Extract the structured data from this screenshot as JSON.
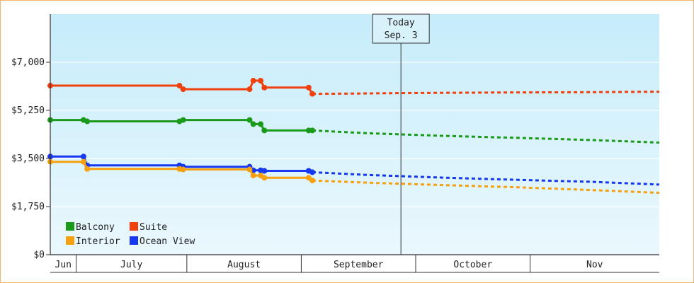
{
  "chart_data": {
    "type": "line",
    "title": "",
    "xlabel": "",
    "ylabel": "",
    "ylim": [
      0,
      8750
    ],
    "yticks": [
      {
        "value": 0,
        "label": "$0"
      },
      {
        "value": 1750,
        "label": "$1,750"
      },
      {
        "value": 3500,
        "label": "$3,500"
      },
      {
        "value": 5250,
        "label": "$5,250"
      },
      {
        "value": 7000,
        "label": "$7,000"
      }
    ],
    "xlim": [
      "2023-05-31",
      "2023-11-12"
    ],
    "months": [
      {
        "label": "Jun",
        "start": "2023-05-31",
        "end": "2023-06-07"
      },
      {
        "label": "July",
        "start": "2023-06-07",
        "end": "2023-07-07"
      },
      {
        "label": "August",
        "start": "2023-07-07",
        "end": "2023-08-07"
      },
      {
        "label": "September",
        "start": "2023-08-07",
        "end": "2023-09-07"
      },
      {
        "label": "October",
        "start": "2023-09-07",
        "end": "2023-10-08"
      },
      {
        "label": "Nov",
        "start": "2023-10-08",
        "end": "2023-11-12"
      }
    ],
    "today": {
      "date": "2023-09-03",
      "label_line1": "Today",
      "label_line2": "Sep. 3"
    },
    "legend_position": "bottom-left",
    "series": [
      {
        "name": "Suite",
        "color": "#f0400e",
        "history": [
          [
            "2023-05-31",
            6150
          ],
          [
            "2023-07-05",
            6150
          ],
          [
            "2023-07-06",
            6020
          ],
          [
            "2023-07-24",
            6020
          ],
          [
            "2023-07-25",
            6330
          ],
          [
            "2023-07-27",
            6330
          ],
          [
            "2023-07-28",
            6080
          ],
          [
            "2023-08-09",
            6080
          ],
          [
            "2023-08-10",
            5850
          ]
        ],
        "forecast": [
          [
            "2023-08-10",
            5850
          ],
          [
            "2023-08-20",
            5860
          ],
          [
            "2023-09-05",
            5880
          ],
          [
            "2023-10-01",
            5900
          ],
          [
            "2023-10-20",
            5910
          ],
          [
            "2023-11-12",
            5930
          ]
        ]
      },
      {
        "name": "Balcony",
        "color": "#1a9a1a",
        "history": [
          [
            "2023-05-31",
            4900
          ],
          [
            "2023-06-09",
            4900
          ],
          [
            "2023-06-10",
            4850
          ],
          [
            "2023-07-05",
            4850
          ],
          [
            "2023-07-06",
            4900
          ],
          [
            "2023-07-24",
            4900
          ],
          [
            "2023-07-25",
            4750
          ],
          [
            "2023-07-27",
            4750
          ],
          [
            "2023-07-28",
            4520
          ],
          [
            "2023-08-09",
            4520
          ],
          [
            "2023-08-10",
            4520
          ]
        ],
        "forecast": [
          [
            "2023-08-10",
            4520
          ],
          [
            "2023-08-25",
            4420
          ],
          [
            "2023-09-15",
            4320
          ],
          [
            "2023-10-05",
            4250
          ],
          [
            "2023-10-25",
            4170
          ],
          [
            "2023-11-12",
            4080
          ]
        ]
      },
      {
        "name": "Ocean View",
        "color": "#1538f0",
        "history": [
          [
            "2023-05-31",
            3570
          ],
          [
            "2023-06-09",
            3570
          ],
          [
            "2023-06-10",
            3250
          ],
          [
            "2023-07-05",
            3250
          ],
          [
            "2023-07-06",
            3200
          ],
          [
            "2023-07-24",
            3200
          ],
          [
            "2023-07-25",
            3070
          ],
          [
            "2023-07-27",
            3070
          ],
          [
            "2023-07-28",
            3050
          ],
          [
            "2023-08-09",
            3050
          ],
          [
            "2023-08-10",
            3000
          ]
        ],
        "forecast": [
          [
            "2023-08-10",
            3000
          ],
          [
            "2023-08-25",
            2900
          ],
          [
            "2023-09-15",
            2800
          ],
          [
            "2023-10-05",
            2720
          ],
          [
            "2023-10-25",
            2650
          ],
          [
            "2023-11-12",
            2550
          ]
        ]
      },
      {
        "name": "Interior",
        "color": "#f5a00f",
        "history": [
          [
            "2023-05-31",
            3380
          ],
          [
            "2023-06-09",
            3380
          ],
          [
            "2023-06-10",
            3120
          ],
          [
            "2023-07-05",
            3120
          ],
          [
            "2023-07-06",
            3100
          ],
          [
            "2023-07-24",
            3100
          ],
          [
            "2023-07-25",
            2880
          ],
          [
            "2023-07-27",
            2880
          ],
          [
            "2023-07-28",
            2800
          ],
          [
            "2023-08-09",
            2800
          ],
          [
            "2023-08-10",
            2700
          ]
        ],
        "forecast": [
          [
            "2023-08-10",
            2700
          ],
          [
            "2023-08-25",
            2620
          ],
          [
            "2023-09-15",
            2530
          ],
          [
            "2023-10-05",
            2450
          ],
          [
            "2023-10-25",
            2350
          ],
          [
            "2023-11-12",
            2250
          ]
        ]
      }
    ],
    "legend": [
      {
        "name": "Balcony",
        "color": "#1a9a1a"
      },
      {
        "name": "Suite",
        "color": "#f0400e"
      },
      {
        "name": "Interior",
        "color": "#f5a00f"
      },
      {
        "name": "Ocean View",
        "color": "#1538f0"
      }
    ]
  }
}
